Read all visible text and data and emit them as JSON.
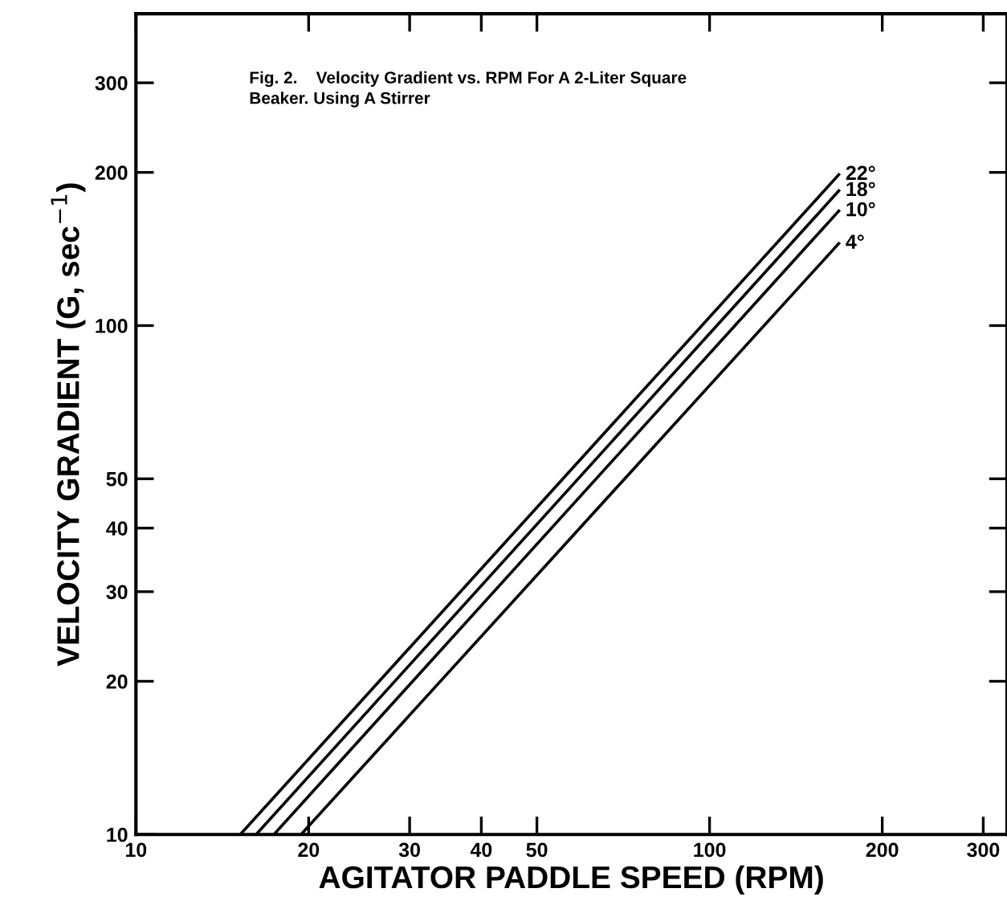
{
  "chart_data": {
    "type": "line",
    "title": "Fig. 2.    Velocity Gradient vs. RPM For A 2-Liter Square\nBeaker. Using A Stirrer",
    "xlabel": "AGITATOR PADDLE SPEED (RPM)",
    "ylabel": "VELOCITY GRADIENT (G, sec$^{−1}$)",
    "log": "xy",
    "xlim": [
      10,
      330
    ],
    "ylim": [
      10,
      410
    ],
    "xticks": [
      10,
      20,
      30,
      40,
      50,
      100,
      200,
      300
    ],
    "yticks": [
      10,
      20,
      30,
      40,
      50,
      100,
      200,
      300
    ],
    "grid": false,
    "legend": false,
    "marker": "none",
    "line_style": "solid",
    "series": [
      {
        "name": "22°",
        "color": "#000000",
        "x": [
          15.2,
          168
        ],
        "values": [
          10,
          198
        ]
      },
      {
        "name": "18°",
        "color": "#000000",
        "x": [
          16.2,
          168
        ],
        "values": [
          10,
          184
        ]
      },
      {
        "name": "10°",
        "color": "#000000",
        "x": [
          17.4,
          168
        ],
        "values": [
          10,
          168
        ]
      },
      {
        "name": "4°",
        "color": "#000000",
        "x": [
          19.4,
          168
        ],
        "values": [
          10,
          145
        ]
      }
    ]
  }
}
